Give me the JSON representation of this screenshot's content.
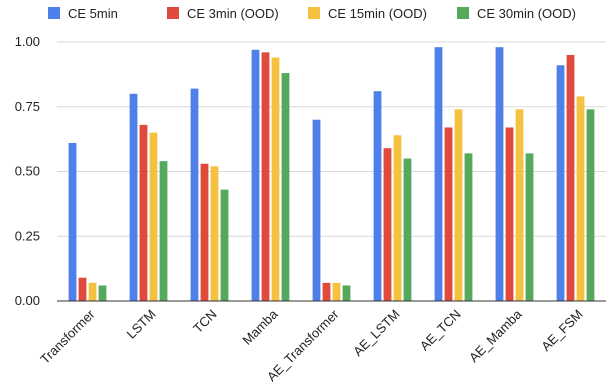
{
  "chart_data": {
    "type": "bar",
    "title": "",
    "xlabel": "",
    "ylabel": "",
    "ylim": [
      0,
      1.0
    ],
    "yticks": [
      "0.00",
      "0.25",
      "0.50",
      "0.75",
      "1.00"
    ],
    "grid": true,
    "legend_position": "top",
    "categories": [
      "Transformer",
      "LSTM",
      "TCN",
      "Mamba",
      "AE_Transformer",
      "AE_LSTM",
      "AE_TCN",
      "AE_Mamba",
      "AE_FSM"
    ],
    "series": [
      {
        "name": "CE 5min",
        "color": "#4f7fe8",
        "values": [
          0.61,
          0.8,
          0.82,
          0.97,
          0.7,
          0.81,
          0.98,
          0.98,
          0.91
        ]
      },
      {
        "name": "CE 3min (OOD)",
        "color": "#df4a3c",
        "values": [
          0.09,
          0.68,
          0.53,
          0.96,
          0.07,
          0.59,
          0.67,
          0.67,
          0.95
        ]
      },
      {
        "name": "CE 15min (OOD)",
        "color": "#f4c141",
        "values": [
          0.07,
          0.65,
          0.52,
          0.94,
          0.07,
          0.64,
          0.74,
          0.74,
          0.79
        ]
      },
      {
        "name": "CE 30min (OOD)",
        "color": "#55a85c",
        "values": [
          0.06,
          0.54,
          0.43,
          0.88,
          0.06,
          0.55,
          0.57,
          0.57,
          0.74
        ]
      }
    ]
  }
}
